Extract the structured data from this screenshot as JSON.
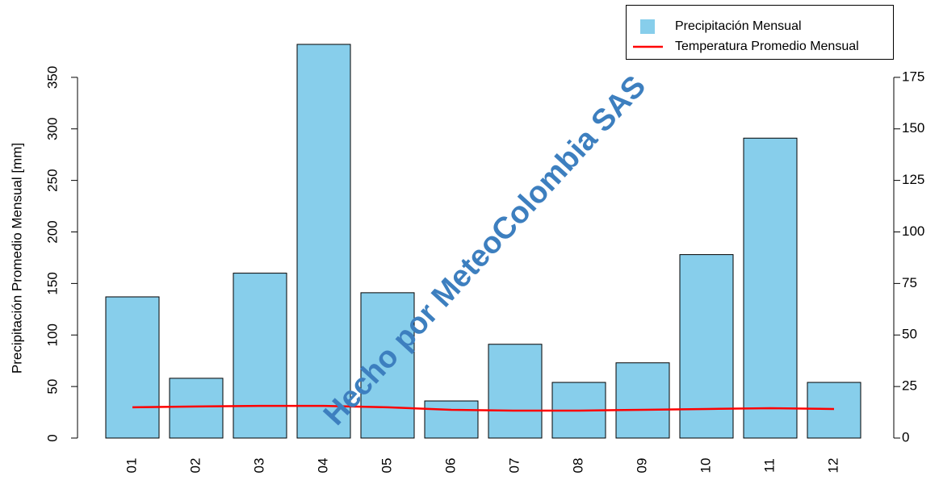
{
  "chart_data": {
    "type": "bar",
    "ylabel": "Precipitación Promedio Mensual [mm]",
    "annotation": "Hecho por MeteoColombia SAS",
    "categories": [
      "01",
      "02",
      "03",
      "04",
      "05",
      "06",
      "07",
      "08",
      "09",
      "10",
      "11",
      "12"
    ],
    "series": [
      {
        "name": "Precipitación Mensual",
        "color": "#87ceeb",
        "values": [
          137,
          58,
          160,
          382,
          141,
          36,
          91,
          54,
          73,
          178,
          291,
          54
        ]
      },
      {
        "name": "Temperatura Promedio Mensual",
        "color": "#ff0000",
        "type": "line",
        "axis": "y2",
        "values": [
          14.9,
          15.3,
          15.6,
          15.6,
          14.9,
          13.7,
          13.3,
          13.3,
          13.7,
          14.1,
          14.5,
          14.1
        ]
      }
    ],
    "ylim": [
      0,
      400
    ],
    "yticks": [
      0,
      50,
      100,
      150,
      200,
      250,
      300,
      350
    ],
    "y2lim": [
      0,
      200
    ],
    "y2ticks": [
      0,
      25,
      50,
      75,
      100,
      125,
      150,
      175
    ],
    "legend": "top-right"
  }
}
